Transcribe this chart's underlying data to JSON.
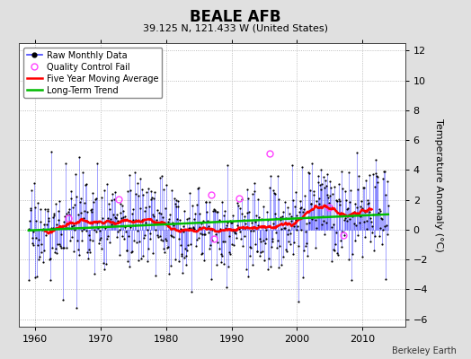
{
  "title": "BEALE AFB",
  "subtitle": "39.125 N, 121.433 W (United States)",
  "ylabel": "Temperature Anomaly (°C)",
  "credit": "Berkeley Earth",
  "xlim": [
    1957.5,
    2016.5
  ],
  "ylim": [
    -6.5,
    12.5
  ],
  "yticks": [
    -6,
    -4,
    -2,
    0,
    2,
    4,
    6,
    8,
    10,
    12
  ],
  "xticks": [
    1960,
    1970,
    1980,
    1990,
    2000,
    2010
  ],
  "fig_bg_color": "#e0e0e0",
  "plot_bg_color": "#ffffff",
  "raw_line_color": "#4444ff",
  "raw_dot_color": "#000000",
  "qc_fail_color": "#ff44ff",
  "moving_avg_color": "#ff0000",
  "trend_color": "#00bb00",
  "seed": 17,
  "n_months": 660
}
